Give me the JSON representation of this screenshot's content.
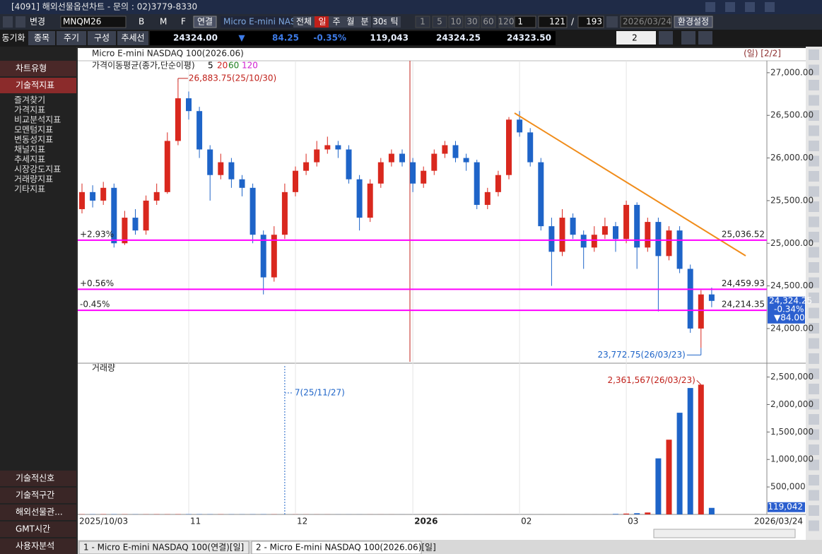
{
  "window": {
    "title": "[4091] 해외선물옵션차트 - 문의 : 02)3779-8330"
  },
  "toolbar": {
    "mode": "변경",
    "code": "MNQM26",
    "letters": [
      "B",
      "M",
      "F"
    ],
    "link": "연결",
    "name": "Micro E-mini NAS",
    "periods": [
      "전체",
      "일",
      "주",
      "월",
      "분",
      "30s",
      "틱"
    ],
    "numbers": [
      "1",
      "5",
      "10",
      "30",
      "60",
      "120"
    ],
    "count": "1",
    "shown": "121",
    "sep": "/",
    "total": "193",
    "date": "2026/03/24",
    "settings": "환경설정"
  },
  "quote": {
    "tabs": [
      "동기화",
      "종목",
      "주기",
      "구성",
      "추세선"
    ],
    "last": "24324.00",
    "arrow": "▼",
    "change": "84.25",
    "pct": "-0.35%",
    "volume": "119,043",
    "bid": "24324.25",
    "ask": "24323.50",
    "layout": "2"
  },
  "sidebar": {
    "top": [
      "차트유형",
      "기술적지표"
    ],
    "tree": [
      "즐겨찾기",
      "가격지표",
      "비교분석지표",
      "모멘텀지표",
      "변동성지표",
      "채널지표",
      "추세지표",
      "시장강도지표",
      "거래량지표",
      "기타지표"
    ],
    "bottom": [
      "기술적신호",
      "기술적구간",
      "해외선물관...",
      "GMT시간",
      "사용자분석"
    ]
  },
  "chart_header": {
    "title": "Micro E-mini NASDAQ 100(2026.06)",
    "period": "(일) [2/2]"
  },
  "chart_data": [
    {
      "type": "candlestick",
      "legend": "가격이동평균(종가,단순이평)",
      "ma_periods": [
        {
          "label": "5",
          "color": "#000000"
        },
        {
          "label": "20",
          "color": "#d02020"
        },
        {
          "label": "60",
          "color": "#208020"
        },
        {
          "label": "120",
          "color": "#d020d0"
        }
      ],
      "up_color": "#d9281e",
      "down_color": "#1e64c8",
      "open": [
        25400,
        25600,
        25500,
        25650,
        25000,
        25300,
        25150,
        25500,
        25600,
        26200,
        26700,
        26550,
        26100,
        25800,
        25950,
        25750,
        25650,
        25100,
        24600,
        25100,
        25600,
        25850,
        25950,
        26100,
        26150,
        26100,
        25750,
        25300,
        25700,
        25950,
        26050,
        25950,
        25700,
        25850,
        26050,
        26150,
        26000,
        25950,
        25450,
        25600,
        25800,
        26450,
        26300,
        25950,
        25200,
        24900,
        25300,
        25100,
        24950,
        25100,
        25200,
        25050,
        25450,
        24950,
        25250,
        24850,
        25150,
        24700,
        24000,
        24400
      ],
      "high": [
        25700,
        25680,
        25720,
        25700,
        25380,
        25400,
        25560,
        25700,
        26300,
        26883.75,
        26780,
        26600,
        26150,
        26050,
        26000,
        25800,
        25700,
        25150,
        25200,
        25700,
        25900,
        26050,
        26200,
        26250,
        26200,
        26150,
        25800,
        25750,
        26000,
        26100,
        26100,
        26000,
        25900,
        26100,
        26200,
        26200,
        26050,
        25980,
        25650,
        25850,
        26480,
        26550,
        26350,
        26000,
        25300,
        25400,
        25350,
        25150,
        25200,
        25300,
        25250,
        25500,
        25480,
        25300,
        25300,
        25200,
        25200,
        24750,
        24450,
        24480
      ],
      "low": [
        25350,
        25420,
        25450,
        24950,
        24980,
        25100,
        25100,
        25450,
        25580,
        26150,
        26450,
        26000,
        25500,
        25750,
        25650,
        25550,
        25000,
        24400,
        24550,
        25050,
        25550,
        25800,
        25900,
        26050,
        26000,
        25700,
        25150,
        25250,
        25650,
        25900,
        25900,
        25600,
        25650,
        25800,
        26000,
        25950,
        25850,
        25400,
        25400,
        25550,
        25750,
        26250,
        25900,
        25150,
        24500,
        24850,
        25050,
        24700,
        24900,
        25050,
        24900,
        25000,
        24700,
        24900,
        24200,
        24800,
        24650,
        23950,
        23772.75,
        24250
      ],
      "close": [
        25600,
        25500,
        25650,
        25000,
        25300,
        25150,
        25500,
        25600,
        26200,
        26700,
        26550,
        26100,
        25800,
        25950,
        25750,
        25650,
        25100,
        24600,
        25100,
        25600,
        25850,
        25950,
        26100,
        26150,
        26100,
        25750,
        25300,
        25700,
        25950,
        26050,
        25950,
        25700,
        25850,
        26050,
        26150,
        26000,
        25950,
        25450,
        25600,
        25800,
        26450,
        26300,
        25950,
        25200,
        24900,
        25300,
        25100,
        24950,
        25100,
        25200,
        25050,
        25450,
        24950,
        25250,
        24850,
        25150,
        24700,
        24000,
        24400,
        24324.25
      ],
      "ylim": [
        23610,
        27140
      ],
      "yticks": [
        {
          "value": 24000,
          "label": "24,000.00"
        },
        {
          "value": 24500,
          "label": "24,500.00"
        },
        {
          "value": 25000,
          "label": "25,000.00"
        },
        {
          "value": 25500,
          "label": "25,500.00"
        },
        {
          "value": 26000,
          "label": "26,000.00"
        },
        {
          "value": 26500,
          "label": "26,500.00"
        },
        {
          "value": 27000,
          "label": "27,000.00"
        }
      ],
      "hlines": [
        {
          "value": 25036.52,
          "label": "25,036.52",
          "pct": "+2.93%"
        },
        {
          "value": 24459.93,
          "label": "24,459.93",
          "pct": "+0.56%"
        },
        {
          "value": 24214.35,
          "label": "24,214.35",
          "pct": "-0.45%"
        }
      ],
      "hline_color": "#ff00ff",
      "high_note": {
        "value": 26883.75,
        "label": "26,883.75(25/10/30)"
      },
      "low_note": {
        "value": 23772.75,
        "label": "23,772.75(26/03/23)"
      },
      "current": {
        "value": 24324.25,
        "label": "24,324.25",
        "pct": "-0.34%",
        "change": "▼84.00"
      }
    },
    {
      "type": "bar",
      "title": "거래량",
      "categories": [
        "2025/10/03",
        null,
        null,
        null,
        null,
        null,
        null,
        null,
        null,
        null,
        "11",
        null,
        null,
        null,
        null,
        null,
        null,
        null,
        null,
        null,
        "12",
        null,
        null,
        null,
        null,
        null,
        null,
        null,
        null,
        null,
        null,
        "2026",
        null,
        null,
        null,
        null,
        null,
        null,
        null,
        null,
        null,
        "02",
        null,
        null,
        null,
        null,
        null,
        null,
        null,
        null,
        null,
        "03",
        null,
        null,
        null,
        null,
        null,
        null,
        null,
        "2026/03/24"
      ],
      "values": [
        4200,
        3800,
        5100,
        4600,
        3500,
        3000,
        2900,
        4100,
        3800,
        4500,
        5200,
        4700,
        3900,
        3300,
        3100,
        2800,
        3600,
        4100,
        2900,
        7,
        2200,
        1800,
        1500,
        1400,
        1200,
        1100,
        1000,
        950,
        900,
        850,
        600,
        400,
        550,
        700,
        650,
        600,
        500,
        450,
        400,
        380,
        350,
        300,
        250,
        220,
        200,
        180,
        150,
        140,
        120,
        100,
        9000,
        15000,
        22000,
        35000,
        1020000,
        1360000,
        1850000,
        2300000,
        2361567,
        119042
      ],
      "ylim": [
        0,
        2700000
      ],
      "yticks": [
        {
          "value": 500000,
          "label": "500,000"
        },
        {
          "value": 1000000,
          "label": "1,000,000"
        },
        {
          "value": 1500000,
          "label": "1,500,000"
        },
        {
          "value": 2000000,
          "label": "2,000,000"
        },
        {
          "value": 2500000,
          "label": "2,500,000"
        }
      ],
      "max_note": {
        "value": 2361567,
        "label": "2,361,567(26/03/23)"
      },
      "min_note": {
        "value": 7,
        "label": "7(25/11/27)"
      },
      "current": {
        "value": 119042,
        "label": "119,042"
      }
    }
  ],
  "tabs": [
    "1 - Micro E-mini NASDAQ 100(연결)[일]",
    "2 - Micro E-mini NASDAQ 100(2026.06)[일]"
  ]
}
